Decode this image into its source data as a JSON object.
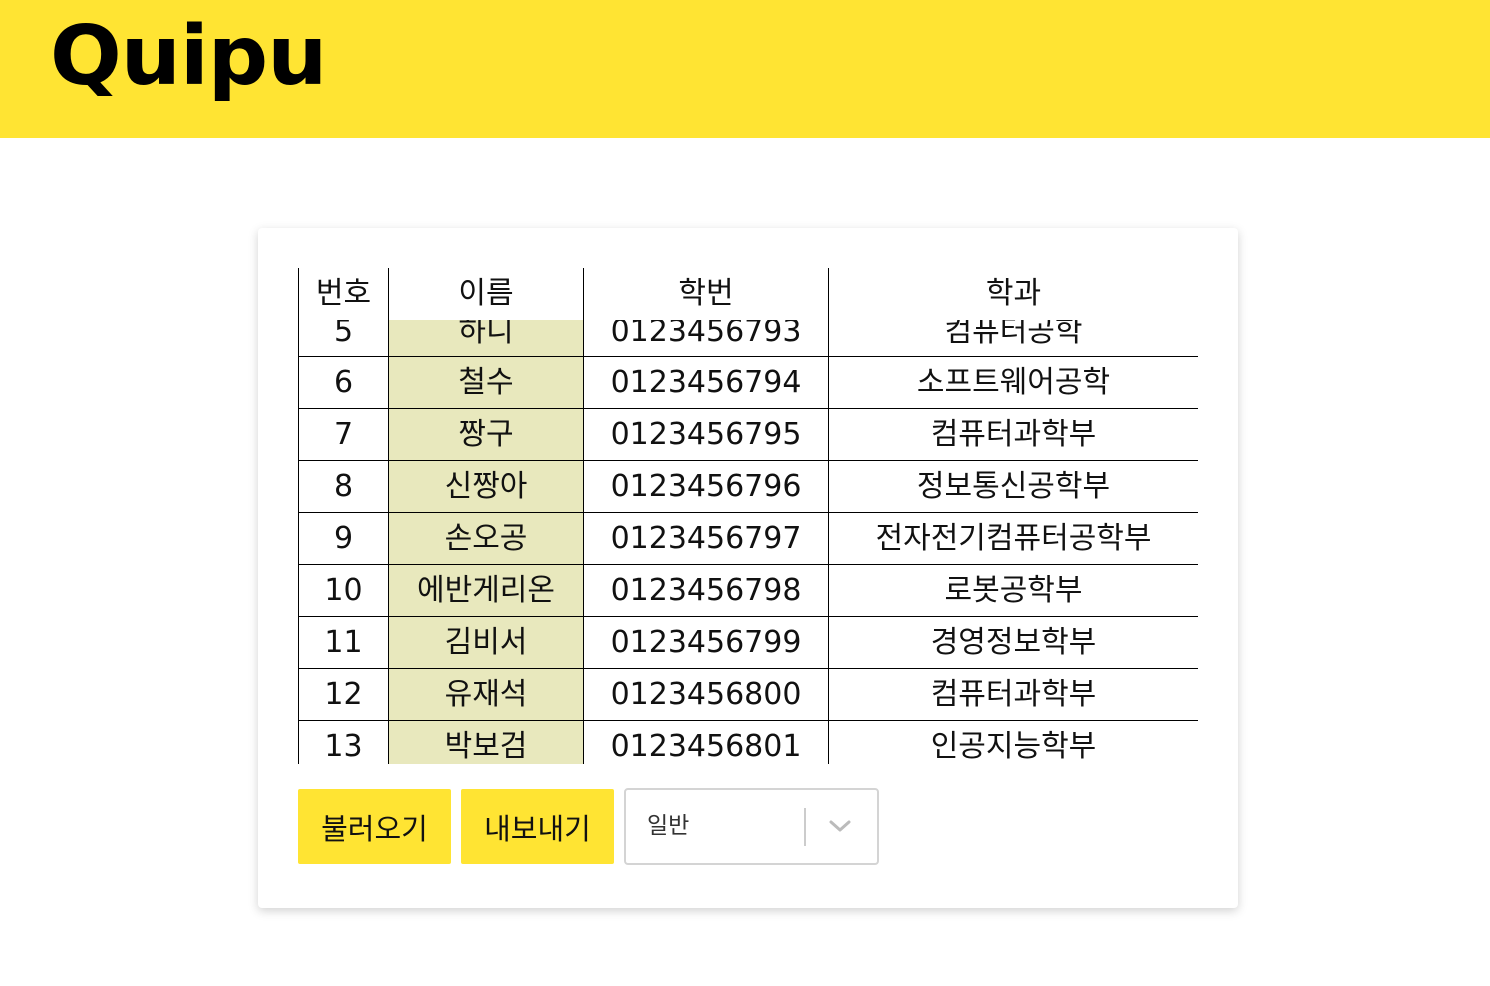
{
  "app": {
    "logo": "Quipu"
  },
  "table": {
    "headers": [
      "번호",
      "이름",
      "학번",
      "학과"
    ],
    "rows": [
      {
        "no": "5",
        "name": "하니",
        "id": "0123456793",
        "dept": "컴퓨터공학"
      },
      {
        "no": "6",
        "name": "철수",
        "id": "0123456794",
        "dept": "소프트웨어공학"
      },
      {
        "no": "7",
        "name": "짱구",
        "id": "0123456795",
        "dept": "컴퓨터과학부"
      },
      {
        "no": "8",
        "name": "신짱아",
        "id": "0123456796",
        "dept": "정보통신공학부"
      },
      {
        "no": "9",
        "name": "손오공",
        "id": "0123456797",
        "dept": "전자전기컴퓨터공학부"
      },
      {
        "no": "10",
        "name": "에반게리온",
        "id": "0123456798",
        "dept": "로봇공학부"
      },
      {
        "no": "11",
        "name": "김비서",
        "id": "0123456799",
        "dept": "경영정보학부"
      },
      {
        "no": "12",
        "name": "유재석",
        "id": "0123456800",
        "dept": "컴퓨터과학부"
      },
      {
        "no": "13",
        "name": "박보검",
        "id": "0123456801",
        "dept": "인공지능학부"
      }
    ]
  },
  "controls": {
    "load_label": "불러오기",
    "export_label": "내보내기",
    "select_value": "일반",
    "select_icon": "chevron-down-icon"
  },
  "colors": {
    "brand_yellow": "#ffe433",
    "name_column_bg": "#e8e8bd"
  }
}
